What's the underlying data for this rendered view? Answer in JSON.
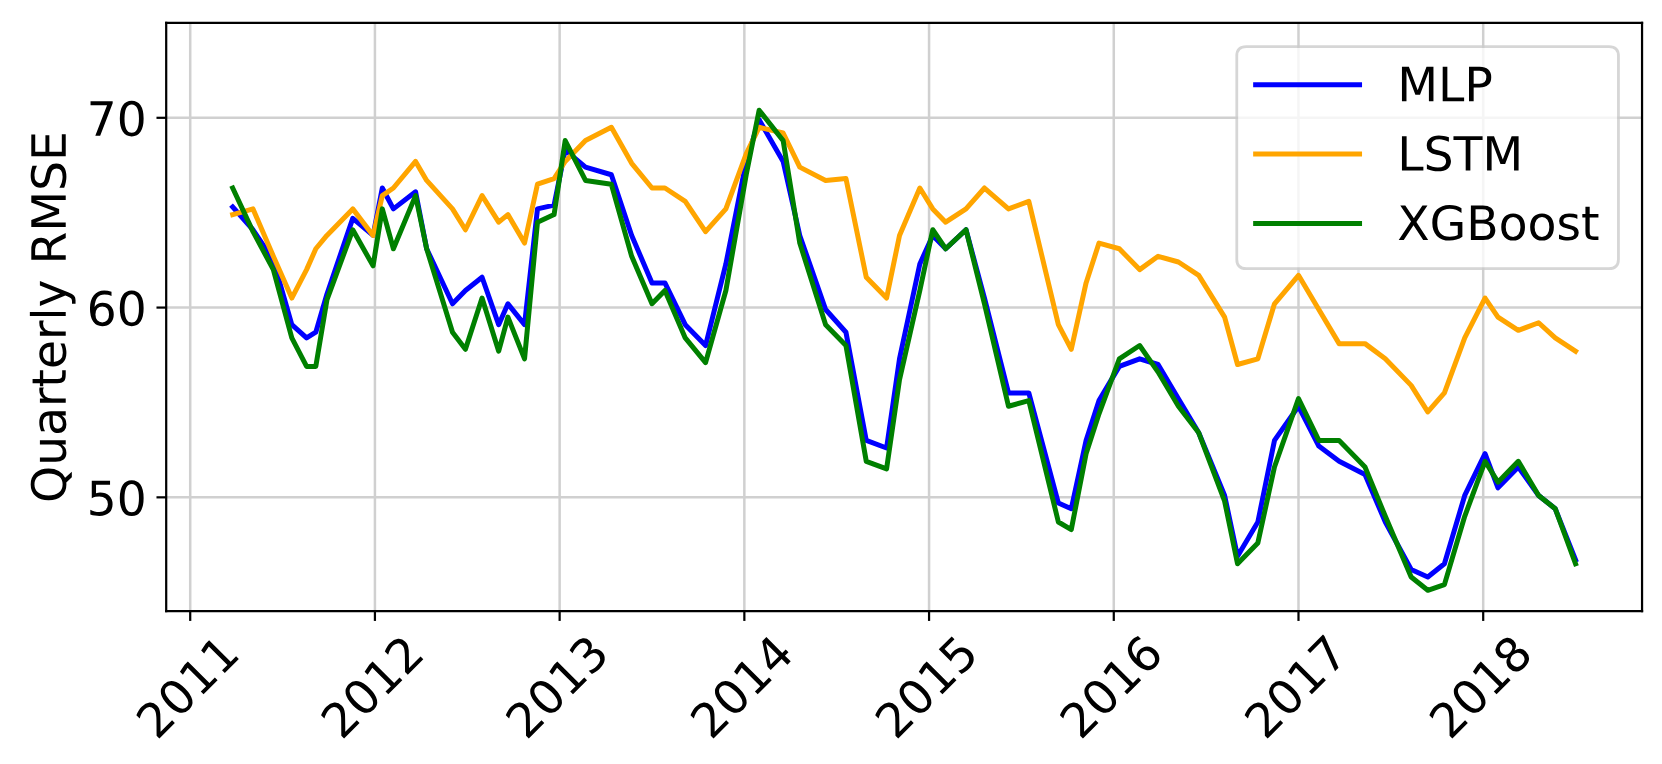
{
  "chart_data": {
    "type": "line",
    "ylabel": "Quarterly RMSE",
    "x": [
      2011.23,
      2011.34,
      2011.45,
      2011.55,
      2011.63,
      2011.68,
      2011.74,
      2011.88,
      2011.99,
      2012.04,
      2012.1,
      2012.22,
      2012.28,
      2012.42,
      2012.49,
      2012.58,
      2012.67,
      2012.72,
      2012.81,
      2012.88,
      2012.97,
      2013.03,
      2013.14,
      2013.28,
      2013.39,
      2013.5,
      2013.57,
      2013.68,
      2013.79,
      2013.9,
      2014.01,
      2014.08,
      2014.21,
      2014.3,
      2014.44,
      2014.55,
      2014.66,
      2014.77,
      2014.84,
      2014.95,
      2015.02,
      2015.09,
      2015.2,
      2015.3,
      2015.43,
      2015.54,
      2015.7,
      2015.77,
      2015.85,
      2015.92,
      2016.03,
      2016.14,
      2016.24,
      2016.35,
      2016.46,
      2016.6,
      2016.67,
      2016.78,
      2016.87,
      2017.0,
      2017.11,
      2017.22,
      2017.36,
      2017.47,
      2017.61,
      2017.7,
      2017.79,
      2017.9,
      2018.01,
      2018.08,
      2018.19,
      2018.3,
      2018.39,
      2018.5
    ],
    "series": [
      {
        "name": "MLP",
        "color": "#0000ff",
        "values": [
          65.3,
          64.1,
          62.5,
          59.1,
          58.4,
          58.7,
          60.7,
          64.7,
          63.8,
          66.3,
          65.2,
          66.1,
          63.1,
          60.2,
          60.9,
          61.6,
          59.1,
          60.2,
          59.1,
          65.2,
          65.4,
          68.3,
          67.4,
          67.0,
          63.8,
          61.3,
          61.3,
          59.1,
          58.0,
          62.3,
          67.7,
          69.9,
          67.7,
          63.8,
          59.9,
          58.7,
          53.0,
          52.6,
          57.3,
          62.3,
          63.8,
          63.1,
          64.1,
          60.5,
          55.5,
          55.5,
          49.7,
          49.4,
          53.0,
          55.1,
          56.9,
          57.3,
          57.0,
          55.2,
          53.4,
          50.1,
          46.9,
          48.7,
          53.0,
          54.8,
          52.7,
          51.9,
          51.2,
          48.7,
          46.2,
          45.8,
          46.5,
          50.1,
          52.3,
          50.5,
          51.6,
          50.1,
          49.4,
          46.7
        ]
      },
      {
        "name": "LSTM",
        "color": "#ffa500",
        "values": [
          64.9,
          65.2,
          62.7,
          60.5,
          62.0,
          63.1,
          63.8,
          65.2,
          63.8,
          65.9,
          66.3,
          67.7,
          66.7,
          65.2,
          64.1,
          65.9,
          64.5,
          64.9,
          63.4,
          66.5,
          66.8,
          67.7,
          68.8,
          69.5,
          67.6,
          66.3,
          66.3,
          65.6,
          64.0,
          65.2,
          68.1,
          69.5,
          69.2,
          67.4,
          66.7,
          66.8,
          61.6,
          60.5,
          63.8,
          66.3,
          65.2,
          64.5,
          65.2,
          66.3,
          65.2,
          65.6,
          59.1,
          57.8,
          61.3,
          63.4,
          63.1,
          62.0,
          62.7,
          62.4,
          61.7,
          59.5,
          57.0,
          57.3,
          60.2,
          61.7,
          59.9,
          58.1,
          58.1,
          57.3,
          55.9,
          54.5,
          55.5,
          58.4,
          60.5,
          59.5,
          58.8,
          59.2,
          58.4,
          57.7
        ]
      },
      {
        "name": "XGBoost",
        "color": "#008000",
        "values": [
          66.3,
          64.0,
          62.0,
          58.4,
          56.9,
          56.9,
          60.4,
          64.1,
          62.2,
          65.2,
          63.1,
          65.9,
          63.1,
          58.7,
          57.8,
          60.5,
          57.7,
          59.5,
          57.3,
          64.5,
          64.9,
          68.8,
          66.7,
          66.5,
          62.7,
          60.2,
          60.9,
          58.4,
          57.1,
          60.9,
          67.0,
          70.4,
          68.8,
          63.4,
          59.1,
          58.0,
          51.9,
          51.5,
          56.2,
          60.9,
          64.1,
          63.1,
          64.1,
          60.2,
          54.8,
          55.1,
          48.7,
          48.3,
          52.3,
          54.4,
          57.3,
          58.0,
          56.6,
          54.8,
          53.4,
          49.8,
          46.5,
          47.6,
          51.6,
          55.2,
          53.0,
          53.0,
          51.6,
          49.0,
          45.8,
          45.1,
          45.4,
          49.0,
          51.9,
          50.8,
          51.9,
          50.1,
          49.4,
          46.5
        ]
      }
    ],
    "xlim": [
      2010.87,
      2018.86
    ],
    "xticks": [
      2011,
      2012,
      2013,
      2014,
      2015,
      2016,
      2017,
      2018
    ],
    "ylim": [
      44,
      75
    ],
    "yticks": [
      50,
      60,
      70
    ],
    "grid": true,
    "legend": "top right",
    "marker": "none",
    "line_style": "solid"
  }
}
